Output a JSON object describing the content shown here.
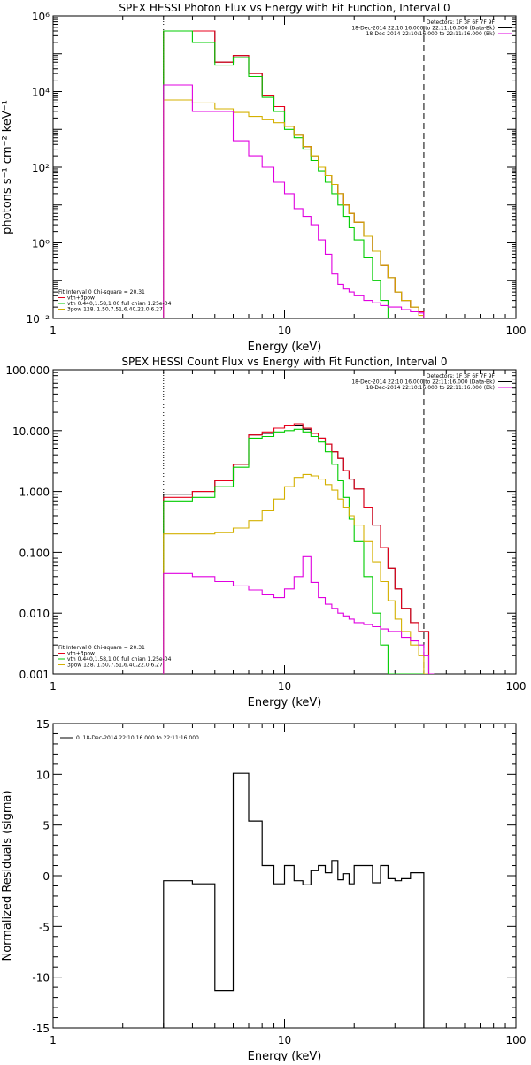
{
  "colors": {
    "data": "#000000",
    "total": "#e8001c",
    "vth": "#00cc00",
    "bpow": "#d4b000",
    "background": "#e000e0"
  },
  "chart_data": [
    {
      "id": "photon",
      "type": "line",
      "title": "SPEX HESSI Photon Flux vs Energy with Fit Function, Interval 0",
      "xlabel": "Energy (keV)",
      "ylabel": "photons s⁻¹ cm⁻² keV⁻¹",
      "xscale": "log",
      "yscale": "log",
      "xlim": [
        1,
        100
      ],
      "ylim": [
        0.01,
        1000000
      ],
      "xticks": [
        1,
        10,
        100
      ],
      "xtick_labels": [
        "1",
        "10",
        "100"
      ],
      "yticks": [
        0.01,
        1,
        100,
        10000,
        1000000
      ],
      "ytick_labels": [
        "10⁻²",
        "10⁰",
        "10²",
        "10⁴",
        "10⁶"
      ],
      "vlines": [
        {
          "x": 3,
          "style": "dotted"
        },
        {
          "x": 40,
          "style": "dashed"
        }
      ],
      "info_lines": [
        "Detectors: 1F 3F 6F 7F 9F",
        "18-Dec-2014 22:10:16.000 to 22:11:16.000 (Data-Bk)",
        "18-Dec-2014 22:10:16.000 to 22:11:16.000 (Bk)"
      ],
      "fit_lines": [
        "Fit Interval 0   Chi-square = 20.31",
        "vth+3pow",
        "vth 0.440,1.58,1.00  full chian 1.25e-04",
        "3pow 128.,1.50,7.51,6.40,22.0,6.27"
      ],
      "edges": [
        3,
        4,
        5,
        6,
        7,
        8,
        9,
        10,
        11,
        12,
        13,
        14,
        15,
        16,
        17,
        18,
        19,
        20,
        22,
        24,
        26,
        28,
        30,
        32,
        35,
        38,
        40
      ],
      "series": [
        {
          "key": "data",
          "values": [
            400000,
            400000,
            60000,
            90000,
            30000,
            8000,
            4000,
            1200,
            700,
            350,
            200,
            100,
            60,
            35,
            20,
            10,
            6,
            3.5,
            1.5,
            0.6,
            0.25,
            0.12,
            0.05,
            0.03,
            0.02,
            0.015
          ]
        },
        {
          "key": "total",
          "values": [
            400000,
            400000,
            60000,
            90000,
            30000,
            8000,
            4000,
            1200,
            700,
            350,
            200,
            100,
            60,
            35,
            20,
            10,
            6,
            3.5,
            1.5,
            0.6,
            0.25,
            0.12,
            0.05,
            0.03,
            0.02,
            0.015
          ]
        },
        {
          "key": "vth",
          "values": [
            400000,
            200000,
            50000,
            80000,
            25000,
            7000,
            3000,
            1000,
            600,
            300,
            150,
            80,
            40,
            20,
            10,
            5,
            2.5,
            1.2,
            0.4,
            0.1,
            0.03,
            0.009,
            0.005,
            0.005,
            0.005,
            0.005
          ]
        },
        {
          "key": "bpow",
          "values": [
            6000,
            5000,
            3500,
            2800,
            2200,
            1800,
            1500,
            1200,
            700,
            350,
            200,
            100,
            60,
            35,
            20,
            10,
            6,
            3.5,
            1.5,
            0.6,
            0.25,
            0.12,
            0.05,
            0.03,
            0.02,
            0.012
          ]
        },
        {
          "key": "background",
          "values": [
            15000,
            3000,
            3000,
            500,
            200,
            100,
            40,
            20,
            8,
            5,
            3,
            1.2,
            0.5,
            0.15,
            0.08,
            0.06,
            0.05,
            0.04,
            0.03,
            0.026,
            0.022,
            0.02,
            0.02,
            0.017,
            0.015,
            0.014
          ]
        }
      ]
    },
    {
      "id": "count",
      "type": "line",
      "title": "SPEX HESSI Count Flux vs Energy with Fit Function, Interval 0",
      "xlabel": "Energy (keV)",
      "ylabel": "",
      "xscale": "log",
      "yscale": "log",
      "xlim": [
        1,
        100
      ],
      "ylim": [
        0.001,
        100
      ],
      "xticks": [
        1,
        10,
        100
      ],
      "xtick_labels": [
        "1",
        "10",
        "100"
      ],
      "yticks": [
        0.001,
        0.01,
        0.1,
        1,
        10,
        100
      ],
      "ytick_labels": [
        "0.001",
        "0.010",
        "0.100",
        "1.000",
        "10.000",
        "100.000"
      ],
      "vlines": [
        {
          "x": 3,
          "style": "dotted"
        },
        {
          "x": 40,
          "style": "dashed"
        }
      ],
      "info_lines": [
        "Detectors: 1F 3F 6F 7F 9F",
        "18-Dec-2014 22:10:16.000 to 22:11:16.000 (Data-Bk)",
        "18-Dec-2014 22:10:16.000 to 22:11:16.000 (Bk)"
      ],
      "fit_lines": [
        "Fit Interval 0   Chi-square = 20.31",
        "vth+3pow",
        "vth 0.440,1.58,1.00  full chian 1.25e-04",
        "3pow 128.,1.50,7.51,6.40,22.0,6.27"
      ],
      "edges": [
        3,
        4,
        5,
        6,
        7,
        8,
        9,
        10,
        11,
        12,
        13,
        14,
        15,
        16,
        17,
        18,
        19,
        20,
        22,
        24,
        26,
        28,
        30,
        32,
        35,
        38,
        40,
        42,
        44
      ],
      "series": [
        {
          "key": "data",
          "values": [
            0.9,
            1.0,
            1.5,
            2.8,
            8.5,
            9.0,
            11,
            12,
            12,
            10.5,
            9.0,
            7.5,
            6.0,
            4.5,
            3.5,
            2.2,
            1.6,
            1.1,
            0.55,
            0.28,
            0.12,
            0.055,
            0.025,
            0.012,
            0.007,
            0.005,
            0.005,
            0.001
          ]
        },
        {
          "key": "total",
          "values": [
            0.8,
            1.0,
            1.5,
            2.8,
            8.5,
            9.5,
            11,
            12,
            13,
            11,
            9.0,
            7.5,
            6.0,
            4.5,
            3.5,
            2.2,
            1.6,
            1.1,
            0.55,
            0.28,
            0.12,
            0.055,
            0.025,
            0.012,
            0.007,
            0.005,
            0.005,
            0.001
          ]
        },
        {
          "key": "vth",
          "values": [
            0.7,
            0.8,
            1.2,
            2.5,
            7.5,
            8.0,
            9.5,
            10,
            10.5,
            9.5,
            8.0,
            6.5,
            4.5,
            2.8,
            1.5,
            0.8,
            0.35,
            0.15,
            0.04,
            0.01,
            0.003,
            0.001,
            0.001,
            0.001,
            0.001,
            0.001,
            0.001,
            0.001
          ]
        },
        {
          "key": "bpow",
          "values": [
            0.2,
            0.2,
            0.21,
            0.25,
            0.33,
            0.48,
            0.75,
            1.2,
            1.7,
            1.9,
            1.8,
            1.6,
            1.3,
            1.05,
            0.75,
            0.55,
            0.4,
            0.28,
            0.15,
            0.07,
            0.033,
            0.016,
            0.008,
            0.005,
            0.003,
            0.002,
            0.001,
            0.0005
          ]
        },
        {
          "key": "background",
          "values": [
            0.045,
            0.04,
            0.033,
            0.028,
            0.024,
            0.02,
            0.018,
            0.025,
            0.04,
            0.085,
            0.032,
            0.018,
            0.014,
            0.012,
            0.01,
            0.009,
            0.008,
            0.007,
            0.0065,
            0.006,
            0.0055,
            0.005,
            0.005,
            0.004,
            0.0035,
            0.003,
            0.002,
            0.001
          ]
        }
      ]
    },
    {
      "id": "residual",
      "type": "line",
      "title": "",
      "xlabel": "Energy (keV)",
      "ylabel": "Normalized Residuals (sigma)",
      "xscale": "log",
      "yscale": "linear",
      "xlim": [
        1,
        100
      ],
      "ylim": [
        -15,
        15
      ],
      "xticks": [
        1,
        10,
        100
      ],
      "xtick_labels": [
        "1",
        "10",
        "100"
      ],
      "yticks": [
        -15,
        -10,
        -5,
        0,
        5,
        10,
        15
      ],
      "ytick_labels": [
        "-15",
        "-10",
        "-5",
        "0",
        "5",
        "10",
        "15"
      ],
      "legend_text": "0. 18-Dec-2014 22:10:16.000 to 22:11:16.000",
      "edges": [
        3,
        4,
        5,
        6,
        7,
        8,
        9,
        10,
        11,
        12,
        13,
        14,
        15,
        16,
        17,
        18,
        19,
        20,
        22,
        24,
        26,
        28,
        30,
        32,
        35,
        38,
        40
      ],
      "values": [
        -0.5,
        -0.8,
        -11.3,
        10.1,
        5.4,
        1.0,
        -0.8,
        1.0,
        -0.5,
        -0.9,
        0.5,
        1.0,
        0.3,
        1.5,
        -0.4,
        0.2,
        -0.8,
        1.0,
        1.0,
        -0.7,
        1.0,
        -0.3,
        -0.5,
        -0.3,
        0.3,
        0.3
      ]
    }
  ]
}
